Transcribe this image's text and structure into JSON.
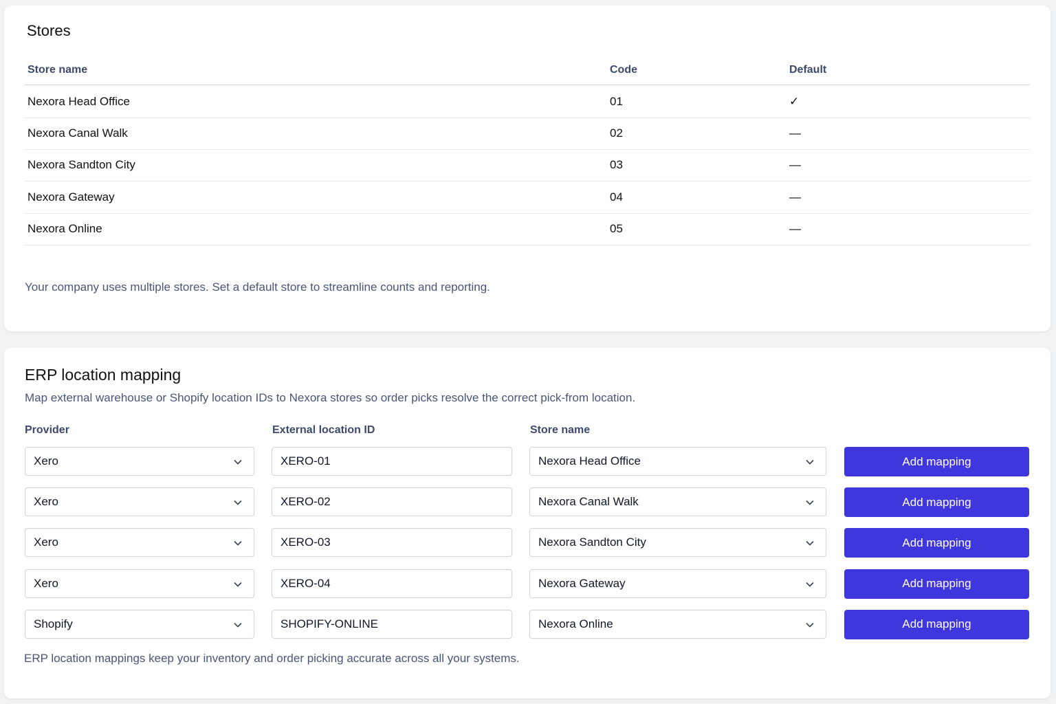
{
  "stores": {
    "title": "Stores",
    "columns": [
      "Store name",
      "Code",
      "Default"
    ],
    "rows": [
      [
        "Nexora Head Office",
        "01",
        "✓"
      ],
      [
        "Nexora Canal Walk",
        "02",
        "—"
      ],
      [
        "Nexora Sandton City",
        "03",
        "—"
      ],
      [
        "Nexora Gateway",
        "04",
        "—"
      ],
      [
        "Nexora Online",
        "05",
        "—"
      ]
    ],
    "note": "Your company uses multiple stores. Set a default store to streamline counts and reporting."
  },
  "erp": {
    "title": "ERP location mapping",
    "description": "Map external warehouse or Shopify location IDs to Nexora stores so order picks resolve the correct pick-from location.",
    "columns": [
      "Provider",
      "External location ID",
      "Store name"
    ],
    "rows": [
      {
        "provider": "Xero",
        "location_id": "XERO-01",
        "store": "Nexora Head Office",
        "action": "Add mapping"
      },
      {
        "provider": "Xero",
        "location_id": "XERO-02",
        "store": "Nexora Canal Walk",
        "action": "Add mapping"
      },
      {
        "provider": "Xero",
        "location_id": "XERO-03",
        "store": "Nexora Sandton City",
        "action": "Add mapping"
      },
      {
        "provider": "Xero",
        "location_id": "XERO-04",
        "store": "Nexora Gateway",
        "action": "Add mapping"
      },
      {
        "provider": "Shopify",
        "location_id": "SHOPIFY-ONLINE",
        "store": "Nexora Online",
        "action": "Add mapping"
      }
    ],
    "footer": "ERP location mappings keep your inventory and order picking accurate across all your systems."
  }
}
